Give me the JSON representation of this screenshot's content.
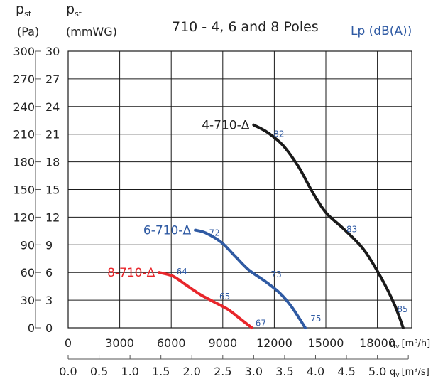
{
  "header": {
    "pressure_pa": {
      "symbol": "p",
      "sub": "sf",
      "unit": "(Pa)"
    },
    "pressure_mmwg": {
      "symbol": "p",
      "sub": "sf",
      "unit": "(mmWG)"
    },
    "flow_m3h": {
      "symbol": "q",
      "sub": "v",
      "unit": "[m³/h]"
    },
    "flow_m3s": {
      "symbol": "q",
      "sub": "v",
      "unit": "[m³/s]"
    }
  },
  "colors": {
    "black": "#1a1a1a",
    "blue": "#2f5aa3",
    "red": "#e8262b",
    "grid": "#1a1a1a",
    "axis": "#555555"
  },
  "chart_data": {
    "type": "line",
    "title": "710 - 4, 6 and 8 Poles",
    "legend_title": "Lp (dB(A))",
    "y_pa_ticks": [
      0,
      30,
      60,
      90,
      120,
      150,
      180,
      210,
      240,
      270,
      300
    ],
    "y_mmwg_ticks": [
      0,
      3,
      6,
      9,
      12,
      15,
      18,
      21,
      24,
      27,
      30
    ],
    "x_m3h_ticks": [
      0,
      3000,
      6000,
      9000,
      12000,
      15000,
      18000
    ],
    "x_m3s_ticks": [
      "0.0",
      "0.5",
      "1.0",
      "1.5",
      "2.0",
      "2.5",
      "3.0",
      "3.5",
      "4.0",
      "4.5",
      "5.0"
    ],
    "ylim_mmwg": [
      0,
      30
    ],
    "xlim_m3h": [
      0,
      20000
    ],
    "grid": true,
    "series": [
      {
        "name": "4-710-Δ",
        "color": "#1a1a1a",
        "points": [
          [
            10800,
            22.0
          ],
          [
            11600,
            21.2
          ],
          [
            12500,
            19.8
          ],
          [
            13400,
            17.5
          ],
          [
            14200,
            14.8
          ],
          [
            15000,
            12.5
          ],
          [
            16000,
            10.8
          ],
          [
            17200,
            8.5
          ],
          [
            18200,
            5.5
          ],
          [
            19000,
            2.5
          ],
          [
            19500,
            0.0
          ]
        ],
        "lp_labels": [
          {
            "x": 11950,
            "y": 21.0,
            "text": "82"
          },
          {
            "x": 16200,
            "y": 10.7,
            "text": "83"
          },
          {
            "x": 19150,
            "y": 2.0,
            "text": "85"
          }
        ]
      },
      {
        "name": "6-710-Δ",
        "color": "#2f5aa3",
        "points": [
          [
            7400,
            10.6
          ],
          [
            8000,
            10.3
          ],
          [
            8900,
            9.3
          ],
          [
            9700,
            7.8
          ],
          [
            10500,
            6.3
          ],
          [
            11500,
            5.0
          ],
          [
            12300,
            3.8
          ],
          [
            13000,
            2.3
          ],
          [
            13800,
            0.0
          ]
        ],
        "lp_labels": [
          {
            "x": 8200,
            "y": 10.3,
            "text": "72"
          },
          {
            "x": 11800,
            "y": 5.8,
            "text": "73"
          },
          {
            "x": 14100,
            "y": 1.0,
            "text": "75"
          }
        ]
      },
      {
        "name": "8-710-Δ",
        "color": "#e8262b",
        "points": [
          [
            5300,
            6.0
          ],
          [
            6100,
            5.6
          ],
          [
            6900,
            4.6
          ],
          [
            7700,
            3.6
          ],
          [
            8500,
            2.8
          ],
          [
            9300,
            2.0
          ],
          [
            10000,
            1.0
          ],
          [
            10700,
            0.0
          ]
        ],
        "lp_labels": [
          {
            "x": 6300,
            "y": 6.1,
            "text": "64"
          },
          {
            "x": 8800,
            "y": 3.4,
            "text": "65"
          },
          {
            "x": 10900,
            "y": 0.5,
            "text": "67"
          }
        ]
      }
    ]
  }
}
